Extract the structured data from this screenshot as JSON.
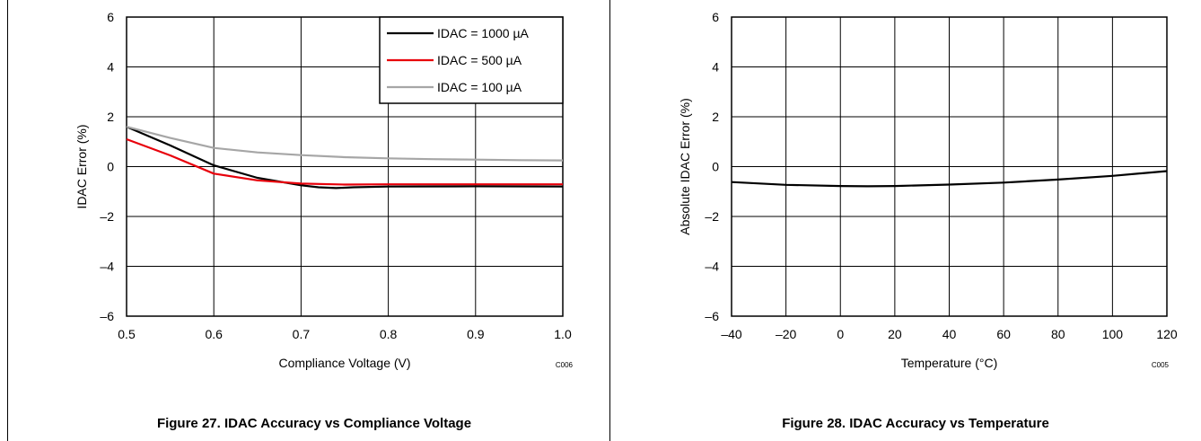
{
  "figures": [
    {
      "caption": "Figure 27. IDAC Accuracy vs Compliance Voltage",
      "code": "C006"
    },
    {
      "caption": "Figure 28. IDAC Accuracy vs Temperature",
      "code": "C005"
    }
  ],
  "chart_data": [
    {
      "type": "line",
      "title": "",
      "xlabel": "Compliance Voltage (V)",
      "ylabel": "IDAC Error (%)",
      "xlim": [
        0.5,
        1.0
      ],
      "ylim": [
        -6,
        6
      ],
      "xticks": [
        0.5,
        0.6,
        0.7,
        0.8,
        0.9,
        1.0
      ],
      "xtick_labels": [
        "0.5",
        "0.6",
        "0.7",
        "0.8",
        "0.9",
        "1.0"
      ],
      "yticks": [
        -6,
        -4,
        -2,
        0,
        2,
        4,
        6
      ],
      "ytick_labels": [
        "–6",
        "–4",
        "–2",
        "0",
        "2",
        "4",
        "6"
      ],
      "grid": true,
      "legend_position": "top-right",
      "series": [
        {
          "name": "IDAC = 1000 µA",
          "color": "#000000",
          "x": [
            0.5,
            0.55,
            0.6,
            0.65,
            0.7,
            0.72,
            0.74,
            0.76,
            0.8,
            0.9,
            1.0
          ],
          "y": [
            1.6,
            0.85,
            0.05,
            -0.45,
            -0.75,
            -0.83,
            -0.86,
            -0.83,
            -0.8,
            -0.79,
            -0.8
          ]
        },
        {
          "name": "IDAC = 500 µA",
          "color": "#e8000b",
          "x": [
            0.5,
            0.55,
            0.6,
            0.65,
            0.7,
            0.75,
            0.8,
            0.9,
            1.0
          ],
          "y": [
            1.1,
            0.45,
            -0.28,
            -0.55,
            -0.68,
            -0.72,
            -0.71,
            -0.71,
            -0.71
          ]
        },
        {
          "name": "IDAC = 100 µA",
          "color": "#a6a6a6",
          "x": [
            0.5,
            0.55,
            0.6,
            0.65,
            0.7,
            0.75,
            0.8,
            0.85,
            0.9,
            0.95,
            1.0
          ],
          "y": [
            1.6,
            1.15,
            0.75,
            0.57,
            0.46,
            0.38,
            0.33,
            0.3,
            0.28,
            0.26,
            0.25
          ]
        }
      ]
    },
    {
      "type": "line",
      "title": "",
      "xlabel": "Temperature (°C)",
      "ylabel": "Absolute IDAC Error (%)",
      "xlim": [
        -40,
        120
      ],
      "ylim": [
        -6,
        6
      ],
      "xticks": [
        -40,
        -20,
        0,
        20,
        40,
        60,
        80,
        100,
        120
      ],
      "xtick_labels": [
        "–40",
        "–20",
        "0",
        "20",
        "40",
        "60",
        "80",
        "100",
        "120"
      ],
      "yticks": [
        -6,
        -4,
        -2,
        0,
        2,
        4,
        6
      ],
      "ytick_labels": [
        "–6",
        "–4",
        "–2",
        "0",
        "2",
        "4",
        "6"
      ],
      "grid": true,
      "series": [
        {
          "color": "#000000",
          "x": [
            -40,
            -20,
            0,
            10,
            20,
            40,
            60,
            80,
            100,
            120
          ],
          "y": [
            -0.62,
            -0.73,
            -0.78,
            -0.79,
            -0.78,
            -0.72,
            -0.64,
            -0.52,
            -0.37,
            -0.18
          ]
        }
      ]
    }
  ]
}
